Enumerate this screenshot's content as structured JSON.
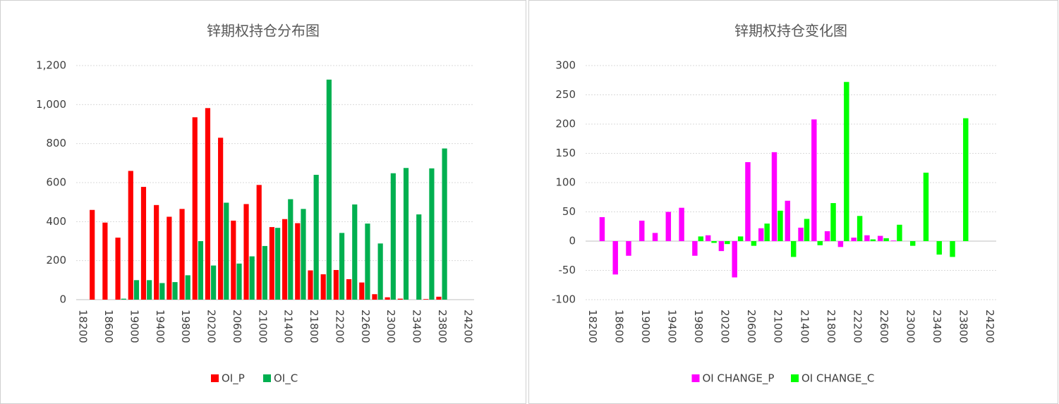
{
  "chart_data": [
    {
      "type": "bar",
      "title": "锌期权持仓分布图",
      "categories": [
        "18200",
        null,
        "18600",
        null,
        "19000",
        null,
        "19400",
        null,
        "19800",
        null,
        "20200",
        null,
        "20600",
        null,
        "21000",
        null,
        "21400",
        null,
        "21800",
        null,
        "22200",
        null,
        "22600",
        null,
        "23000",
        null,
        "23400",
        null,
        "23800",
        null,
        "24200"
      ],
      "series": [
        {
          "name": "OI_P",
          "color": "#ff0000",
          "values": [
            0,
            460,
            395,
            318,
            660,
            578,
            485,
            425,
            465,
            935,
            982,
            830,
            405,
            490,
            588,
            372,
            413,
            392,
            150,
            130,
            152,
            105,
            88,
            28,
            12,
            5,
            0,
            3,
            15,
            0,
            0
          ]
        },
        {
          "name": "OI_C",
          "color": "#00b050",
          "values": [
            0,
            0,
            0,
            5,
            100,
            100,
            85,
            90,
            125,
            300,
            175,
            497,
            185,
            222,
            275,
            368,
            515,
            465,
            640,
            1128,
            342,
            488,
            390,
            288,
            648,
            675,
            437,
            673,
            775,
            0,
            0
          ]
        }
      ],
      "ylim": [
        0,
        1200
      ],
      "yticks": [
        0,
        200,
        400,
        600,
        800,
        {
          "value": 1000,
          "label": "1,000"
        },
        {
          "value": 1200,
          "label": "1,200"
        }
      ],
      "grid": true,
      "legend": "bottom"
    },
    {
      "type": "bar",
      "title": "锌期权持仓变化图",
      "categories": [
        "18200",
        null,
        "18600",
        null,
        "19000",
        null,
        "19400",
        null,
        "19800",
        null,
        "20200",
        null,
        "20600",
        null,
        "21000",
        null,
        "21400",
        null,
        "21800",
        null,
        "22200",
        null,
        "22600",
        null,
        "23000",
        null,
        "23400",
        null,
        "23800",
        null,
        "24200"
      ],
      "series": [
        {
          "name": "OI CHANGE_P",
          "color": "#ff00ff",
          "values": [
            0,
            41,
            -57,
            -25,
            35,
            14,
            50,
            57,
            -25,
            10,
            -17,
            -62,
            135,
            22,
            152,
            69,
            23,
            208,
            17,
            -10,
            6,
            10,
            9,
            1,
            0,
            0,
            0,
            0,
            0,
            0,
            0
          ]
        },
        {
          "name": "OI CHANGE_C",
          "color": "#00ff00",
          "values": [
            0,
            0,
            0,
            0,
            0,
            0,
            0,
            0,
            8,
            -3,
            -5,
            8,
            -8,
            30,
            52,
            -27,
            38,
            -7,
            65,
            272,
            43,
            3,
            5,
            28,
            -8,
            117,
            -23,
            -27,
            210,
            0,
            0
          ]
        }
      ],
      "ylim": [
        -100,
        300
      ],
      "yticks": [
        -100,
        -50,
        0,
        50,
        100,
        150,
        200,
        250,
        300
      ],
      "grid": true,
      "legend": "bottom"
    }
  ]
}
